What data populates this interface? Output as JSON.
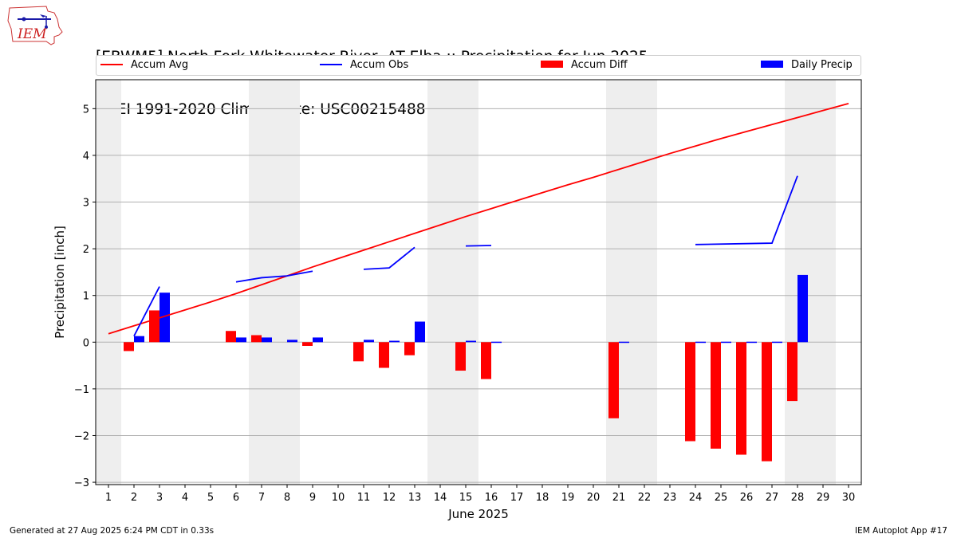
{
  "header": {
    "title_line1": "[EBWM5] North Fork Whitewater River  AT Elba :: Precipitation for Jun 2025",
    "title_line2": "NCEI 1991-2020 Climate Site: USC00215488",
    "logo_text": "IEM"
  },
  "legend": [
    {
      "label": "Accum Avg",
      "kind": "line",
      "color": "#ff0000"
    },
    {
      "label": "Accum Obs",
      "kind": "line",
      "color": "#0000ff"
    },
    {
      "label": "Accum Diff",
      "kind": "box",
      "color": "#ff0000"
    },
    {
      "label": "Daily Precip",
      "kind": "box",
      "color": "#0000ff"
    }
  ],
  "footer": {
    "generated": "Generated at 27 Aug 2025 6:24 PM CDT in 0.33s",
    "app": "IEM Autoplot App #17"
  },
  "chart_data": {
    "type": "bar",
    "title": "[EBWM5] North Fork Whitewater River  AT Elba :: Precipitation for Jun 2025",
    "subtitle": "NCEI 1991-2020 Climate Site: USC00215488",
    "xlabel": "June 2025",
    "ylabel": "Precipitation [inch]",
    "xlim": [
      0.5,
      30.5
    ],
    "ylim": [
      -3.05,
      5.62
    ],
    "x_ticks": [
      1,
      2,
      3,
      4,
      5,
      6,
      7,
      8,
      9,
      10,
      11,
      12,
      13,
      14,
      15,
      16,
      17,
      18,
      19,
      20,
      21,
      22,
      23,
      24,
      25,
      26,
      27,
      28,
      29,
      30
    ],
    "y_ticks": [
      -3,
      -2,
      -1,
      0,
      1,
      2,
      3,
      4,
      5
    ],
    "y_tick_labels": [
      "−3",
      "−2",
      "−1",
      "0",
      "1",
      "2",
      "3",
      "4",
      "5"
    ],
    "grid": "horizontal",
    "weekend_shading": [
      [
        0.5,
        1.5
      ],
      [
        6.5,
        8.5
      ],
      [
        13.5,
        15.5
      ],
      [
        20.5,
        22.5
      ],
      [
        27.5,
        29.5
      ]
    ],
    "colors": {
      "avg": "#ff0000",
      "obs": "#0000ff",
      "diff": "#ff0000",
      "daily": "#0000ff",
      "shade": "#eeeeee",
      "grid": "#b0b0b0"
    },
    "series": [
      {
        "name": "Accum Avg",
        "kind": "line",
        "x": [
          1,
          2,
          3,
          4,
          5,
          6,
          7,
          8,
          9,
          10,
          11,
          12,
          13,
          14,
          15,
          16,
          17,
          18,
          19,
          20,
          21,
          22,
          23,
          24,
          25,
          26,
          27,
          28,
          29,
          30
        ],
        "values": [
          0.18,
          0.35,
          0.52,
          0.69,
          0.86,
          1.04,
          1.23,
          1.42,
          1.61,
          1.79,
          1.97,
          2.15,
          2.33,
          2.51,
          2.69,
          2.86,
          3.03,
          3.2,
          3.37,
          3.53,
          3.7,
          3.87,
          4.04,
          4.2,
          4.36,
          4.51,
          4.66,
          4.81,
          4.96,
          5.11
        ]
      },
      {
        "name": "Accum Obs",
        "kind": "line",
        "segments": [
          {
            "x": [
              2,
              3
            ],
            "values": [
              0.13,
              1.19
            ]
          },
          {
            "x": [
              6,
              7,
              8,
              9
            ],
            "values": [
              1.29,
              1.38,
              1.42,
              1.52
            ]
          },
          {
            "x": [
              11,
              12,
              13
            ],
            "values": [
              1.56,
              1.59,
              2.03
            ]
          },
          {
            "x": [
              15,
              16
            ],
            "values": [
              2.06,
              2.07
            ]
          },
          {
            "x": [
              24,
              27,
              28
            ],
            "values": [
              2.09,
              2.12,
              3.56
            ]
          }
        ]
      },
      {
        "name": "Accum Diff",
        "kind": "bar",
        "x": [
          2,
          3,
          6,
          7,
          9,
          11,
          12,
          13,
          15,
          16,
          21,
          24,
          25,
          26,
          27,
          28
        ],
        "values": [
          -0.19,
          0.68,
          0.24,
          0.15,
          -0.08,
          -0.41,
          -0.55,
          -0.28,
          -0.61,
          -0.79,
          -1.63,
          -2.12,
          -2.28,
          -2.41,
          -2.55,
          -1.26
        ]
      },
      {
        "name": "Daily Precip",
        "kind": "bar",
        "x": [
          2,
          3,
          6,
          7,
          8,
          9,
          11,
          12,
          13,
          15,
          16,
          21,
          24,
          25,
          26,
          27,
          28
        ],
        "values": [
          0.13,
          1.06,
          0.1,
          0.1,
          0.05,
          0.1,
          0.05,
          0.03,
          0.44,
          0.03,
          0.01,
          0.01,
          0.01,
          0.01,
          0.01,
          0.01,
          1.44
        ]
      }
    ]
  }
}
